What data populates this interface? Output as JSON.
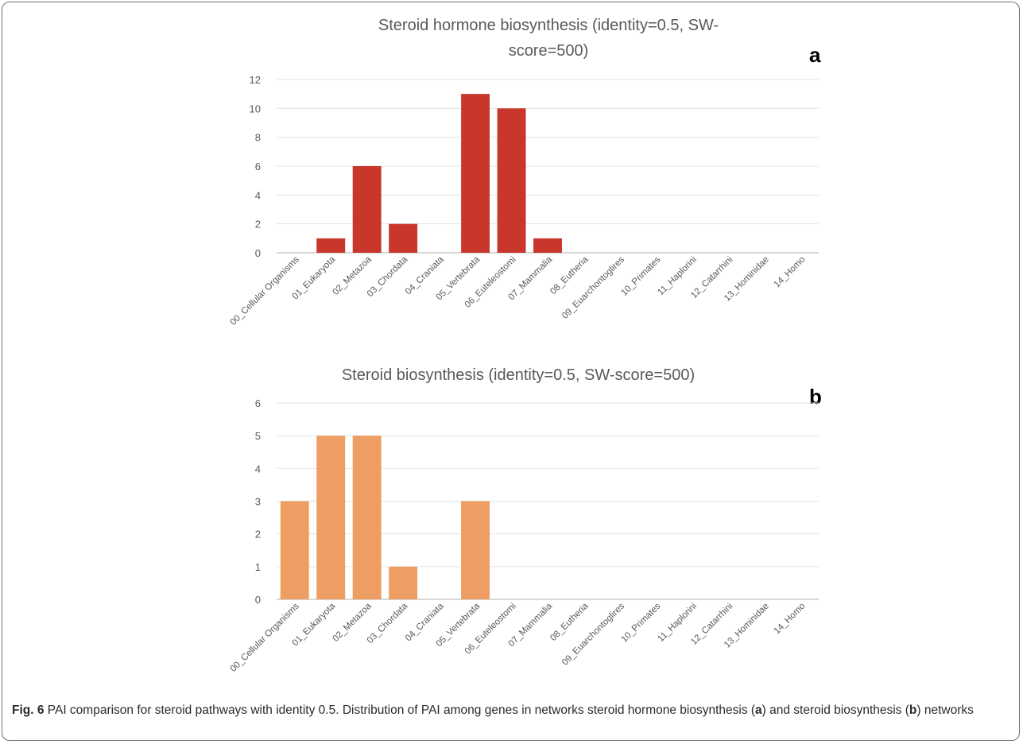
{
  "chart_data": [
    {
      "type": "bar",
      "panel_label": "a",
      "title_lines": [
        "Steroid hormone biosynthesis  (identity=0.5, SW-",
        "score=500)"
      ],
      "categories": [
        "00_Cellular Organisms",
        "01_Eukaryota",
        "02_Metazoa",
        "03_Chordata",
        "04_Craniata",
        "05_Vertebrata",
        "06_Euteleostomi",
        "07_Mammalia",
        "08_Eutheria",
        "09_Euarchontoglires",
        "10_Primates",
        "11_Haplorini",
        "12_Catarrhini",
        "13_Hominidae",
        "14_Homo"
      ],
      "values": [
        0,
        1,
        6,
        2,
        0,
        11,
        10,
        1,
        0,
        0,
        0,
        0,
        0,
        0,
        0
      ],
      "ylim": [
        0,
        12
      ],
      "yticks": [
        "0",
        "2",
        "4",
        "6",
        "8",
        "10",
        "12"
      ],
      "grid": true,
      "color": "#c9372c"
    },
    {
      "type": "bar",
      "panel_label": "b",
      "title_lines": [
        "Steroid biosynthesis  (identity=0.5, SW-score=500)"
      ],
      "categories": [
        "00_Cellular Organisms",
        "01_Eukaryota",
        "02_Metazoa",
        "03_Chordata",
        "04_Craniata",
        "05_Vertebrata",
        "06_Euteleostomi",
        "07_Mammalia",
        "08_Eutheria",
        "09_Euarchontoglires",
        "10_Primates",
        "11_Haplorini",
        "12_Catarrhini",
        "13_Hominidae",
        "14_Homo"
      ],
      "values": [
        3,
        5,
        5,
        1,
        0,
        3,
        0,
        0,
        0,
        0,
        0,
        0,
        0,
        0,
        0
      ],
      "ylim": [
        0,
        6
      ],
      "yticks": [
        "0",
        "1",
        "2",
        "3",
        "4",
        "5",
        "6"
      ],
      "grid": true,
      "color": "#ef9e63"
    }
  ],
  "caption": {
    "fig_label": "Fig. 6",
    "part1": " PAI comparison for steroid pathways with identity 0.5. Distribution of PAI among genes in networks steroid hormone biosynthesis (",
    "ref_a": "a",
    "part2": ") and steroid biosynthesis (",
    "ref_b": "b",
    "part3": ") networks"
  }
}
